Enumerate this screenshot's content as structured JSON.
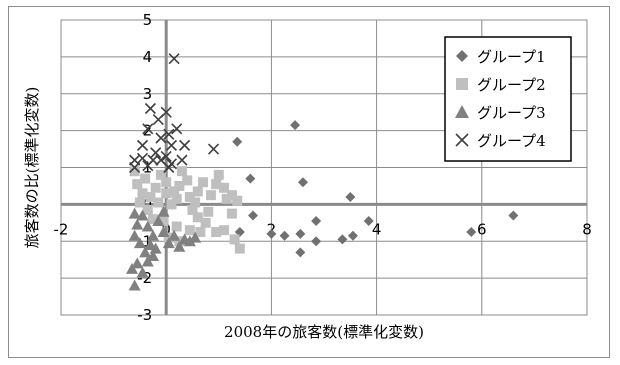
{
  "chart_data": {
    "type": "scatter",
    "title": "",
    "xlabel": "2008年の旅客数(標準化変数)",
    "ylabel": "旅客数の比(標準化変数)",
    "xlim": [
      -2,
      8
    ],
    "ylim": [
      -3,
      5
    ],
    "x_ticks": [
      "-2",
      "0",
      "2",
      "4",
      "6",
      "8"
    ],
    "y_ticks": [
      "5",
      "4",
      "3",
      "2",
      "1",
      "0",
      "-1",
      "-2",
      "-3"
    ],
    "grid": true,
    "legend_position": "top-right",
    "series": [
      {
        "name": "グループ1",
        "marker": "diamond",
        "color": "#707070",
        "points": [
          [
            1.35,
            1.7
          ],
          [
            2.45,
            2.15
          ],
          [
            1.6,
            0.7
          ],
          [
            2.6,
            0.6
          ],
          [
            3.5,
            0.2
          ],
          [
            1.65,
            -0.3
          ],
          [
            1.4,
            -0.75
          ],
          [
            2.0,
            -0.8
          ],
          [
            2.25,
            -0.85
          ],
          [
            2.55,
            -0.8
          ],
          [
            2.85,
            -0.45
          ],
          [
            2.85,
            -1.0
          ],
          [
            2.55,
            -1.3
          ],
          [
            3.35,
            -0.95
          ],
          [
            3.55,
            -0.85
          ],
          [
            3.85,
            -0.45
          ],
          [
            5.8,
            -0.75
          ],
          [
            6.6,
            -0.3
          ]
        ]
      },
      {
        "name": "グループ2",
        "marker": "square",
        "color": "#bfbfbf",
        "points": [
          [
            -0.6,
            0.9
          ],
          [
            -0.55,
            0.55
          ],
          [
            -0.45,
            0.3
          ],
          [
            -0.5,
            0.05
          ],
          [
            -0.35,
            -0.15
          ],
          [
            -0.3,
            0.2
          ],
          [
            -0.2,
            0.45
          ],
          [
            -0.1,
            0.8
          ],
          [
            0.0,
            0.6
          ],
          [
            0.0,
            0.3
          ],
          [
            0.1,
            0.0
          ],
          [
            0.15,
            0.35
          ],
          [
            0.25,
            0.5
          ],
          [
            0.3,
            0.9
          ],
          [
            0.4,
            0.65
          ],
          [
            0.45,
            0.2
          ],
          [
            0.5,
            -0.15
          ],
          [
            0.55,
            0.05
          ],
          [
            0.6,
            -0.35
          ],
          [
            0.75,
            -0.5
          ],
          [
            0.8,
            -0.2
          ],
          [
            0.85,
            0.25
          ],
          [
            0.95,
            0.55
          ],
          [
            1.0,
            0.8
          ],
          [
            1.1,
            0.45
          ],
          [
            1.15,
            0.15
          ],
          [
            1.25,
            -0.25
          ],
          [
            1.25,
            0.25
          ],
          [
            1.35,
            0.1
          ],
          [
            1.1,
            -0.7
          ],
          [
            1.3,
            -0.95
          ],
          [
            0.95,
            -0.75
          ],
          [
            0.65,
            -0.75
          ],
          [
            0.45,
            -0.7
          ],
          [
            0.2,
            -0.6
          ],
          [
            -0.05,
            -0.45
          ],
          [
            -0.25,
            -0.4
          ],
          [
            0.05,
            -0.9
          ],
          [
            0.25,
            -1.0
          ],
          [
            1.4,
            -1.2
          ],
          [
            -0.15,
            0.05
          ],
          [
            0.2,
            0.15
          ],
          [
            0.6,
            0.35
          ],
          [
            0.7,
            0.6
          ],
          [
            -0.4,
            0.7
          ]
        ]
      },
      {
        "name": "グループ3",
        "marker": "triangle",
        "color": "#808080",
        "points": [
          [
            -0.6,
            -2.2
          ],
          [
            -0.65,
            -1.75
          ],
          [
            -0.55,
            -1.6
          ],
          [
            -0.45,
            -1.85
          ],
          [
            -0.35,
            -1.55
          ],
          [
            -0.25,
            -1.4
          ],
          [
            -0.3,
            -1.1
          ],
          [
            -0.5,
            -1.05
          ],
          [
            -0.6,
            -0.85
          ],
          [
            -0.55,
            -0.55
          ],
          [
            -0.6,
            -0.25
          ],
          [
            -0.45,
            -0.3
          ],
          [
            -0.35,
            -0.6
          ],
          [
            -0.25,
            -0.85
          ],
          [
            -0.15,
            -0.45
          ],
          [
            -0.05,
            -0.2
          ],
          [
            -0.05,
            -0.75
          ],
          [
            0.05,
            -1.05
          ],
          [
            0.15,
            -0.85
          ],
          [
            0.25,
            -1.15
          ],
          [
            0.35,
            -0.95
          ],
          [
            0.45,
            -1.0
          ],
          [
            0.55,
            -0.9
          ],
          [
            -0.2,
            -1.2
          ],
          [
            -0.4,
            -1.3
          ]
        ]
      },
      {
        "name": "グループ4",
        "marker": "cross",
        "color": "#404040",
        "points": [
          [
            0.15,
            3.95
          ],
          [
            -0.3,
            2.6
          ],
          [
            -0.15,
            2.3
          ],
          [
            0.0,
            2.5
          ],
          [
            0.2,
            2.05
          ],
          [
            -0.35,
            2.05
          ],
          [
            -0.1,
            1.8
          ],
          [
            0.05,
            1.9
          ],
          [
            -0.45,
            1.6
          ],
          [
            -0.6,
            1.2
          ],
          [
            -0.45,
            1.25
          ],
          [
            -0.35,
            1.05
          ],
          [
            -0.25,
            1.2
          ],
          [
            -0.1,
            1.2
          ],
          [
            0.0,
            1.3
          ],
          [
            0.1,
            1.1
          ],
          [
            -0.6,
            1.0
          ],
          [
            0.35,
            1.6
          ],
          [
            0.3,
            1.2
          ],
          [
            -0.2,
            1.4
          ],
          [
            0.1,
            1.6
          ],
          [
            0.9,
            1.5
          ],
          [
            0.05,
            1.0
          ]
        ]
      }
    ]
  }
}
